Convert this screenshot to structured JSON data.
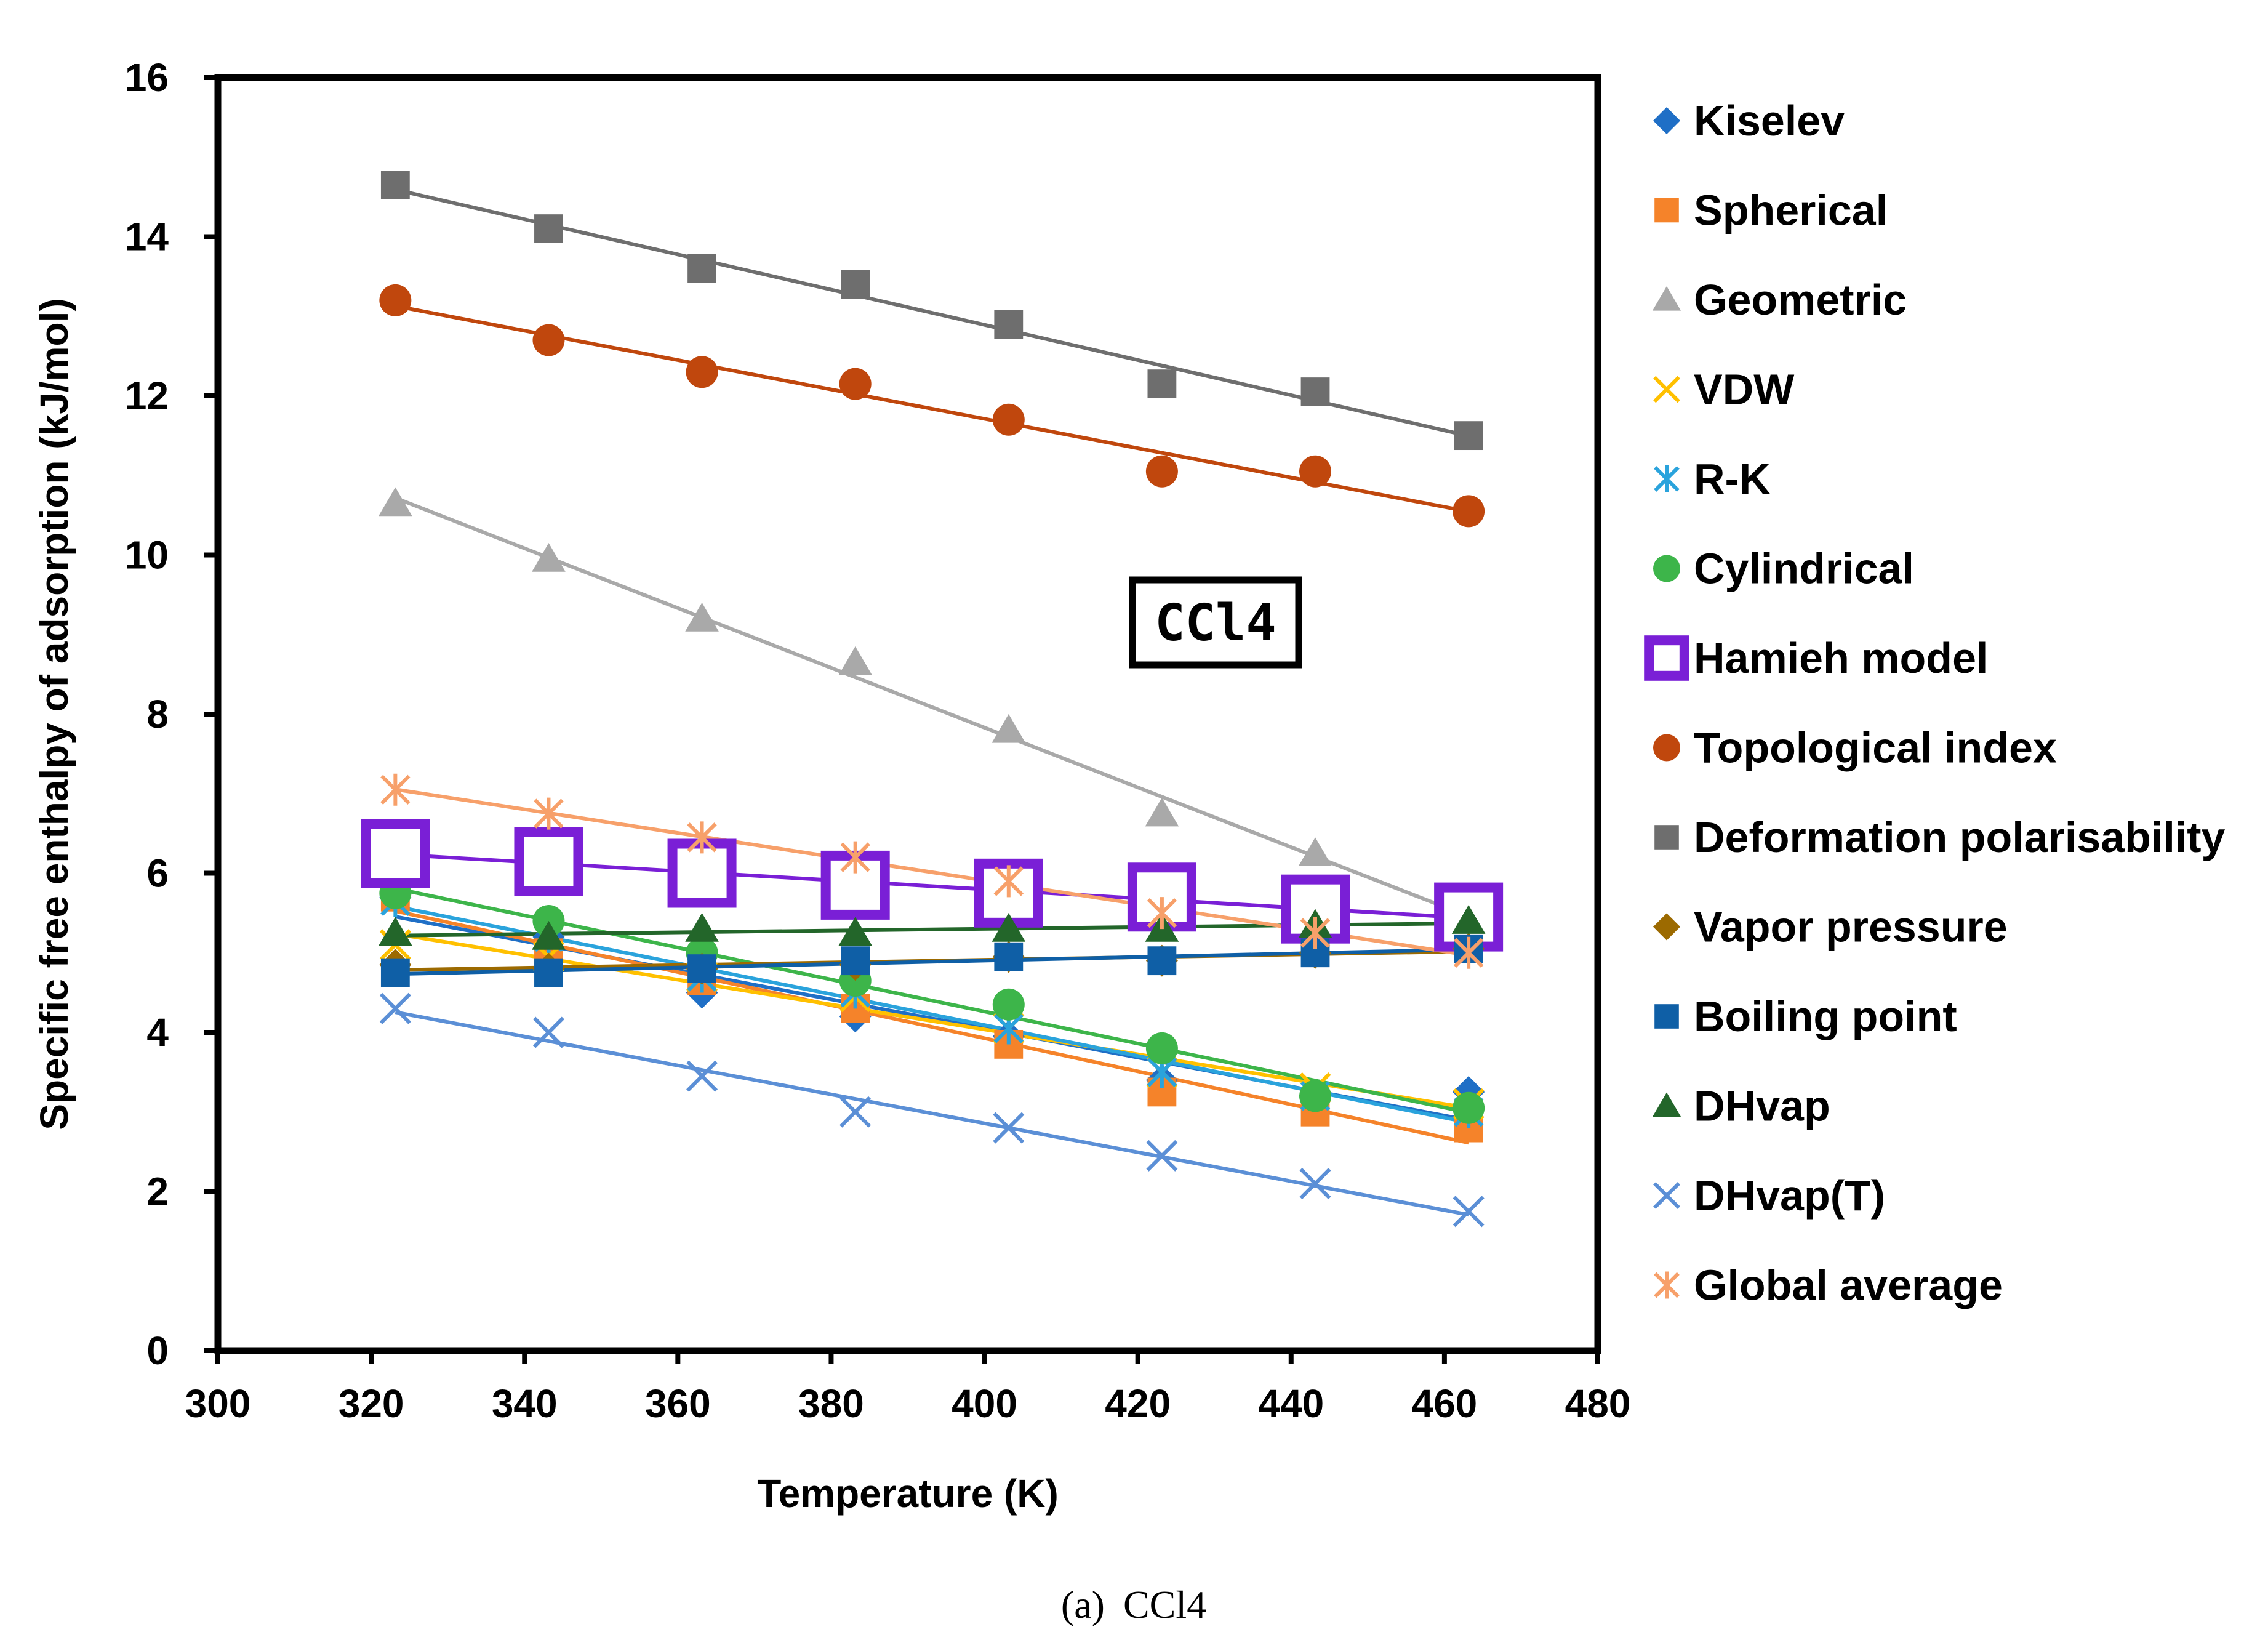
{
  "chart_data": {
    "type": "scatter",
    "title": "",
    "xlabel": "Temperature (K)",
    "ylabel": "Specific free enthalpy of adsorption (kJ/mol)",
    "xlim": [
      300,
      480
    ],
    "ylim": [
      0,
      16
    ],
    "xticks": [
      300,
      320,
      340,
      360,
      380,
      400,
      420,
      440,
      460,
      480
    ],
    "yticks": [
      0,
      2,
      4,
      6,
      8,
      10,
      12,
      14,
      16
    ],
    "grid": false,
    "legend_position": "right",
    "x": [
      323.15,
      343.15,
      363.15,
      383.15,
      403.15,
      423.15,
      443.15,
      463.15
    ],
    "series": [
      {
        "name": "Kiselev",
        "color": "#1f6fc6",
        "marker": "diamond",
        "values": [
          5.7,
          5.2,
          4.5,
          4.2,
          3.95,
          3.4,
          3.2,
          3.25
        ]
      },
      {
        "name": "Spherical",
        "color": "#f5832a",
        "marker": "square",
        "values": [
          5.7,
          5.0,
          4.65,
          4.3,
          3.85,
          3.25,
          3.0,
          2.8
        ]
      },
      {
        "name": "Geometric",
        "color": "#a9a9a9",
        "marker": "triangle",
        "values": [
          10.65,
          9.95,
          9.2,
          8.65,
          7.8,
          6.75,
          6.25,
          5.45
        ]
      },
      {
        "name": "VDW",
        "color": "#ffc000",
        "marker": "x",
        "values": [
          5.1,
          4.95,
          4.7,
          4.45,
          4.05,
          3.5,
          3.3,
          3.1
        ]
      },
      {
        "name": "R-K",
        "color": "#2aa3dc",
        "marker": "star",
        "values": [
          5.65,
          5.2,
          4.7,
          4.5,
          4.05,
          3.5,
          3.2,
          3.0
        ]
      },
      {
        "name": "Cylindrical",
        "color": "#3db54a",
        "marker": "circle",
        "values": [
          5.75,
          5.4,
          5.0,
          4.65,
          4.35,
          3.8,
          3.2,
          3.05
        ]
      },
      {
        "name": "Hamieh model",
        "color": "#7a1fd6",
        "marker": "hollow-square",
        "values": [
          6.25,
          6.15,
          6.0,
          5.85,
          5.75,
          5.7,
          5.55,
          5.45
        ]
      },
      {
        "name": "Topological index",
        "color": "#c0470d",
        "marker": "circle",
        "values": [
          13.2,
          12.7,
          12.3,
          12.15,
          11.7,
          11.05,
          11.05,
          10.55
        ]
      },
      {
        "name": "Deformation polarisability",
        "color": "#6e6e6e",
        "marker": "square",
        "values": [
          14.65,
          14.1,
          13.6,
          13.4,
          12.9,
          12.15,
          12.05,
          11.5
        ]
      },
      {
        "name": "Vapor pressure",
        "color": "#9c6a00",
        "marker": "diamond",
        "values": [
          4.85,
          4.8,
          4.8,
          4.85,
          4.95,
          4.9,
          5.0,
          5.05
        ]
      },
      {
        "name": "Boiling point",
        "color": "#0f5fa6",
        "marker": "square",
        "values": [
          4.75,
          4.75,
          4.8,
          4.9,
          4.95,
          4.9,
          5.0,
          5.05
        ]
      },
      {
        "name": "DHvap",
        "color": "#23662a",
        "marker": "triangle",
        "values": [
          5.25,
          5.2,
          5.3,
          5.25,
          5.3,
          5.3,
          5.35,
          5.4
        ]
      },
      {
        "name": "DHvap(T)",
        "color": "#5b8fd6",
        "marker": "x",
        "values": [
          4.3,
          4.0,
          3.45,
          3.0,
          2.8,
          2.45,
          2.1,
          1.75
        ]
      },
      {
        "name": "Global average",
        "color": "#f7a06a",
        "marker": "star",
        "values": [
          7.05,
          6.75,
          6.45,
          6.2,
          5.9,
          5.5,
          5.25,
          5.0
        ]
      }
    ],
    "annotation": "CCl4",
    "caption_label": "(a)",
    "caption_text": "CCl4"
  }
}
